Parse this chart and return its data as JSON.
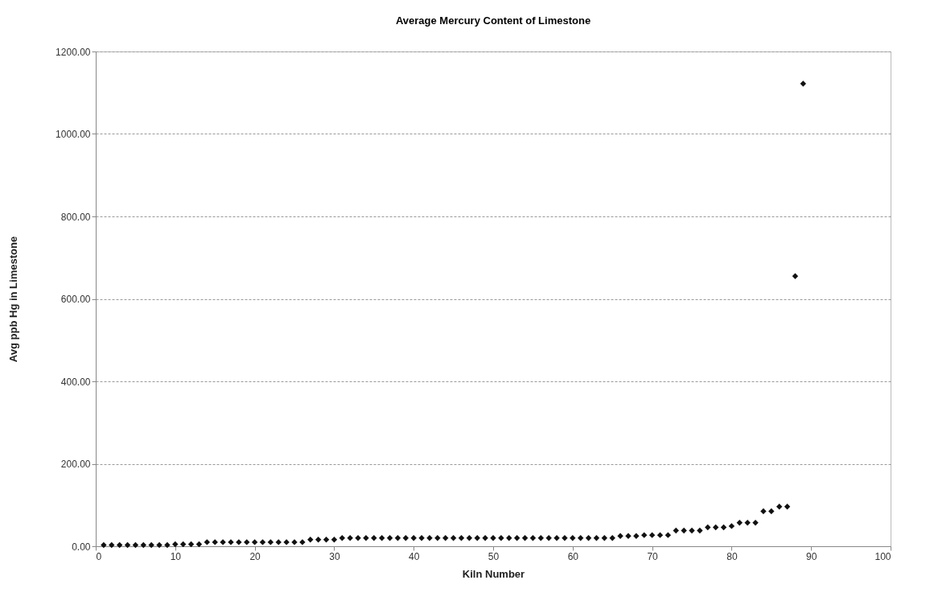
{
  "chart_data": {
    "type": "scatter",
    "title": "Average Mercury Content of Limestone",
    "xlabel": "Kiln Number",
    "ylabel": "Avg ppb Hg in Limestone",
    "x": [
      1,
      2,
      3,
      4,
      5,
      6,
      7,
      8,
      9,
      10,
      11,
      12,
      13,
      14,
      15,
      16,
      17,
      18,
      19,
      20,
      21,
      22,
      23,
      24,
      25,
      26,
      27,
      28,
      29,
      30,
      31,
      32,
      33,
      34,
      35,
      36,
      37,
      38,
      39,
      40,
      41,
      42,
      43,
      44,
      45,
      46,
      47,
      48,
      49,
      50,
      51,
      52,
      53,
      54,
      55,
      56,
      57,
      58,
      59,
      60,
      61,
      62,
      63,
      64,
      65,
      66,
      67,
      68,
      69,
      70,
      71,
      72,
      73,
      74,
      75,
      76,
      77,
      78,
      79,
      80,
      81,
      82,
      83,
      84,
      85,
      86,
      87,
      88,
      89
    ],
    "series": [
      {
        "color": "#111111",
        "values": [
          3,
          3,
          3,
          3,
          3,
          3,
          3,
          3,
          3,
          5,
          5,
          5,
          5,
          10,
          10,
          10,
          10,
          10,
          10,
          10,
          10,
          10,
          10,
          10,
          10,
          10,
          16,
          16,
          16,
          16,
          20,
          20,
          20,
          20,
          20,
          20,
          20,
          20,
          20,
          20,
          20,
          20,
          20,
          20,
          20,
          20,
          20,
          20,
          20,
          20,
          20,
          20,
          20,
          20,
          20,
          20,
          20,
          20,
          20,
          20,
          20,
          20,
          20,
          20,
          20,
          25,
          25,
          25,
          27,
          27,
          27,
          27,
          38,
          38,
          38,
          38,
          46,
          46,
          46,
          49,
          57,
          57,
          57,
          85,
          85,
          96,
          96,
          655,
          1122
        ]
      }
    ],
    "xlim": [
      0,
      100
    ],
    "xticks": [
      0,
      10,
      20,
      30,
      40,
      50,
      60,
      70,
      80,
      90,
      100
    ],
    "ylim": [
      0,
      1200
    ],
    "yticks": [
      {
        "value": 0,
        "label": "0.00"
      },
      {
        "value": 200,
        "label": "200.00"
      },
      {
        "value": 400,
        "label": "400.00"
      },
      {
        "value": 600,
        "label": "600.00"
      },
      {
        "value": 800,
        "label": "800.00"
      },
      {
        "value": 1000,
        "label": "1000.00"
      },
      {
        "value": 1200,
        "label": "1200.00"
      }
    ],
    "grid": "y",
    "marker": "diamond"
  }
}
